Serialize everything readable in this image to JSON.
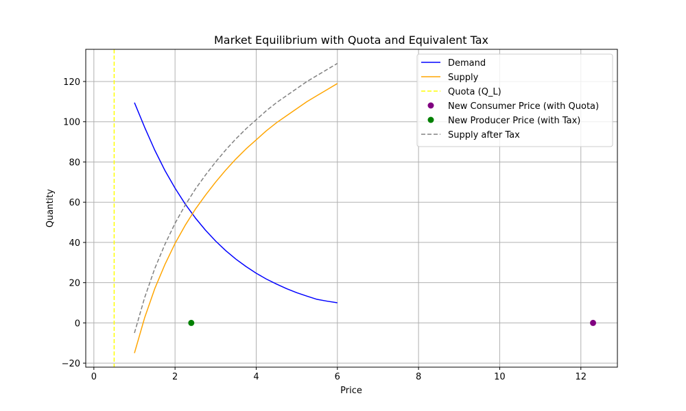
{
  "chart_data": {
    "type": "line",
    "title": "Market Equilibrium with Quota and Equivalent Tax",
    "xlabel": "Price",
    "ylabel": "Quantity",
    "xlim": [
      -0.2,
      12.9
    ],
    "ylim": [
      -22,
      136
    ],
    "xticks": [
      0,
      2,
      4,
      6,
      8,
      10,
      12
    ],
    "yticks": [
      -20,
      0,
      20,
      40,
      60,
      80,
      100,
      120
    ],
    "grid": true,
    "legend_position": "top-right",
    "series": [
      {
        "name": "Demand",
        "style": "solid",
        "color": "#0000ff",
        "x": [
          1.0,
          1.25,
          1.5,
          1.75,
          2.0,
          2.25,
          2.5,
          2.75,
          3.0,
          3.25,
          3.5,
          3.75,
          4.0,
          4.25,
          4.5,
          4.75,
          5.0,
          5.25,
          5.5,
          5.75,
          6.0
        ],
        "y": [
          109.5,
          97.3,
          85.9,
          75.8,
          67.0,
          59.1,
          52.2,
          46.1,
          40.7,
          35.9,
          31.7,
          28.0,
          24.7,
          21.8,
          19.3,
          17.0,
          15.0,
          13.3,
          11.7,
          10.8,
          10.0
        ]
      },
      {
        "name": "Supply",
        "style": "solid",
        "color": "#ffa500",
        "x": [
          1.0,
          1.25,
          1.5,
          1.75,
          2.0,
          2.25,
          2.5,
          2.75,
          3.0,
          3.25,
          3.5,
          3.75,
          4.0,
          4.25,
          4.5,
          4.75,
          5.0,
          5.25,
          5.5,
          5.75,
          6.0
        ],
        "y": [
          -15.0,
          2.5,
          17.0,
          29.0,
          39.5,
          48.5,
          56.5,
          63.5,
          70.0,
          76.0,
          81.5,
          86.5,
          91.0,
          95.5,
          99.5,
          103.0,
          106.5,
          110.0,
          113.0,
          116.0,
          119.0
        ]
      },
      {
        "name": "Supply after Tax",
        "style": "dashed",
        "color": "#808080",
        "x": [
          1.0,
          1.25,
          1.5,
          1.75,
          2.0,
          2.25,
          2.5,
          2.75,
          3.0,
          3.25,
          3.5,
          3.75,
          4.0,
          4.25,
          4.5,
          4.75,
          5.0,
          5.25,
          5.5,
          5.75,
          6.0
        ],
        "y": [
          -5.0,
          12.5,
          27.0,
          39.0,
          49.5,
          58.5,
          66.5,
          73.5,
          80.0,
          86.0,
          91.5,
          96.5,
          101.0,
          105.5,
          109.5,
          113.0,
          116.5,
          120.0,
          123.0,
          126.0,
          129.0
        ]
      }
    ],
    "vlines": [
      {
        "name": "Quota (Q_L)",
        "x": 0.5,
        "style": "dashed",
        "color": "#ffff00"
      }
    ],
    "points": [
      {
        "name": "New Consumer Price (with Quota)",
        "x": 12.3,
        "y": 0,
        "color": "#800080"
      },
      {
        "name": "New Producer Price (with Tax)",
        "x": 2.4,
        "y": 0,
        "color": "#008000"
      }
    ],
    "legend": [
      {
        "label": "Demand",
        "kind": "line",
        "style": "solid",
        "color": "#0000ff"
      },
      {
        "label": "Supply",
        "kind": "line",
        "style": "solid",
        "color": "#ffa500"
      },
      {
        "label": "Quota (Q_L)",
        "kind": "line",
        "style": "dashed",
        "color": "#ffff00"
      },
      {
        "label": "New Consumer Price (with Quota)",
        "kind": "marker",
        "color": "#800080"
      },
      {
        "label": "New Producer Price (with Tax)",
        "kind": "marker",
        "color": "#008000"
      },
      {
        "label": "Supply after Tax",
        "kind": "line",
        "style": "dashed",
        "color": "#808080"
      }
    ]
  }
}
